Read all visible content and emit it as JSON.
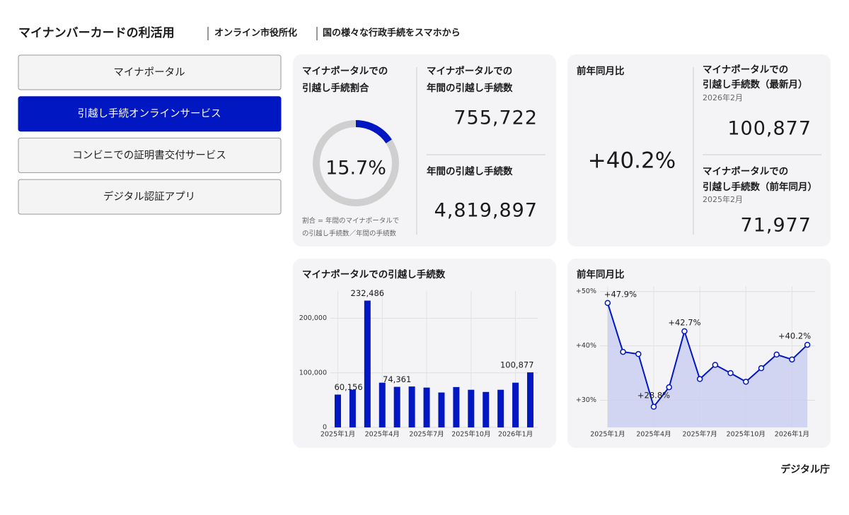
{
  "header": {
    "title": "マイナンバーカードの利活用",
    "crumbs": [
      "オンライン市役所化",
      "国の様々な行政手続をスマホから"
    ]
  },
  "nav": [
    "マイナポータル",
    "引越し手続オンラインサービス",
    "コンビニでの証明書交付サービス",
    "デジタル認証アプリ"
  ],
  "active_nav": 1,
  "ratio": {
    "title": [
      "マイナポータルでの",
      "引越し手続割合"
    ],
    "value": 15.7,
    "value_label": "15.7%",
    "note": [
      "割合 = 年間のマイナポータルで",
      "の引越し手続数／年間の手続数"
    ]
  },
  "annual_portal": {
    "title": [
      "マイナポータルでの",
      "年間の引越し手続数"
    ],
    "value": "755,722"
  },
  "annual_total": {
    "title": [
      "年間の引越し手続数"
    ],
    "value": "4,819,897"
  },
  "yoy": {
    "title": "前年同月比",
    "value": "+40.2%"
  },
  "latest": {
    "title": [
      "マイナポータルでの",
      "引越し手続数（最新月）"
    ],
    "period": "2026年2月",
    "value": "100,877"
  },
  "prev_year": {
    "title": [
      "マイナポータルでの",
      "引越し手続数（前年同月）"
    ],
    "period": "2025年2月",
    "value": "71,977"
  },
  "chart_data": [
    {
      "type": "bar",
      "title": "マイナポータルでの引越し手続数",
      "color": "#0017c1",
      "categories": [
        "2025年1月",
        null,
        null,
        "2025年4月",
        null,
        null,
        "2025年7月",
        null,
        null,
        "2025年10月",
        null,
        null,
        "2026年1月",
        null
      ],
      "values": [
        60156,
        69000,
        232486,
        82000,
        74361,
        75000,
        73000,
        64000,
        74000,
        69000,
        65000,
        69000,
        82000,
        100877
      ],
      "value_labels": [
        "60,156",
        null,
        "232,486",
        null,
        "74,361",
        null,
        null,
        null,
        null,
        null,
        null,
        null,
        null,
        "100,877"
      ],
      "ylim": [
        0,
        250000
      ],
      "yticks": [
        0,
        {
          "value": 100000,
          "label": "100,000"
        },
        {
          "value": 200000,
          "label": "200,000"
        }
      ],
      "grid": true
    },
    {
      "type": "line",
      "title": "前年同月比",
      "color": "#0017c1",
      "fill": "#c9cdf0",
      "categories": [
        "2025年1月",
        null,
        null,
        "2025年4月",
        null,
        null,
        "2025年7月",
        null,
        null,
        "2025年10月",
        null,
        null,
        "2026年1月",
        null
      ],
      "values": [
        47.9,
        38.9,
        38.5,
        28.8,
        32.4,
        42.7,
        33.9,
        36.5,
        35.0,
        33.4,
        35.9,
        38.4,
        37.5,
        40.2
      ],
      "value_labels": [
        "+47.9%",
        null,
        null,
        "+28.8%",
        null,
        "+42.7%",
        null,
        null,
        null,
        null,
        null,
        null,
        null,
        "+40.2%"
      ],
      "ylim": [
        25,
        51
      ],
      "yticks": [
        {
          "value": 30,
          "label": "+30%"
        },
        {
          "value": 40,
          "label": "+40%"
        },
        {
          "value": 50,
          "label": "+50%"
        }
      ],
      "grid": true
    }
  ],
  "footer": "デジタル庁"
}
